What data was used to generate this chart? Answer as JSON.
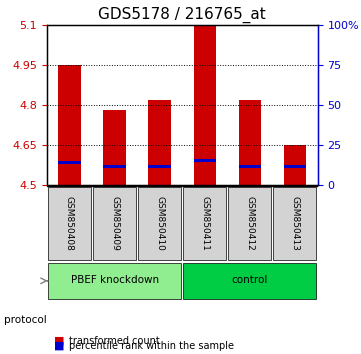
{
  "title": "GDS5178 / 216765_at",
  "samples": [
    "GSM850408",
    "GSM850409",
    "GSM850410",
    "GSM850411",
    "GSM850412",
    "GSM850413"
  ],
  "red_values": [
    4.95,
    4.78,
    4.82,
    5.1,
    4.82,
    4.65
  ],
  "blue_values": [
    4.585,
    4.572,
    4.572,
    4.592,
    4.572,
    4.57
  ],
  "ymin": 4.5,
  "ymax": 5.1,
  "yticks_left": [
    4.5,
    4.65,
    4.8,
    4.95,
    5.1
  ],
  "yticks_right": [
    0,
    25,
    50,
    75,
    100
  ],
  "groups": [
    {
      "label": "PBEF knockdown",
      "samples": [
        "GSM850408",
        "GSM850409",
        "GSM850410"
      ],
      "color": "#90ee90"
    },
    {
      "label": "control",
      "samples": [
        "GSM850411",
        "GSM850412",
        "GSM850413"
      ],
      "color": "#00cc44"
    }
  ],
  "bar_color": "#cc0000",
  "blue_color": "#0000cc",
  "background_chart": "#ffffff",
  "grid_color": "#000000",
  "title_fontsize": 11,
  "axis_label_color_left": "#cc0000",
  "axis_label_color_right": "#0000cc",
  "bar_width": 0.5,
  "protocol_label": "protocol"
}
